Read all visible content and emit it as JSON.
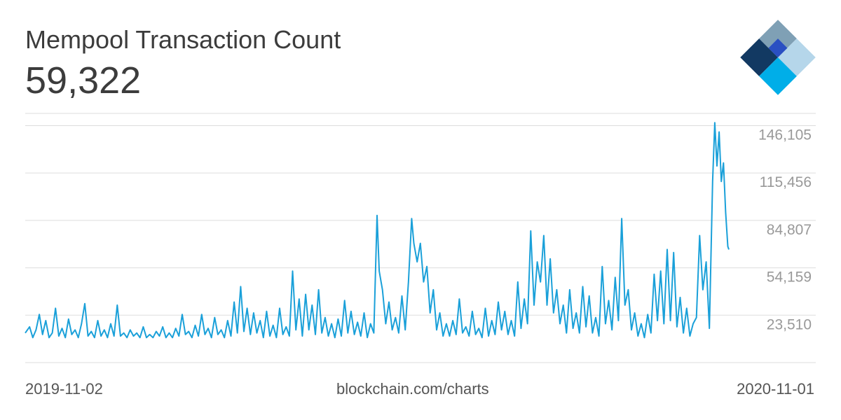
{
  "header": {
    "title": "Mempool Transaction Count",
    "value": "59,322"
  },
  "footer": {
    "start_date": "2019-11-02",
    "source": "blockchain.com/charts",
    "end_date": "2020-11-01"
  },
  "logo": {
    "icon": "blockchain-logo-icon",
    "colors": [
      "#7fa0b5",
      "#123962",
      "#2a4fc2",
      "#b5d6ea",
      "#00aee8"
    ]
  },
  "colors": {
    "line": "#1aa0d9",
    "grid": "#dddddd",
    "tick_text": "#999999"
  },
  "chart_data": {
    "type": "line",
    "title": "Mempool Transaction Count",
    "xlabel": "",
    "ylabel": "",
    "x_range": [
      "2019-11-02",
      "2020-11-01"
    ],
    "yticks": [
      23510,
      54159,
      84807,
      115456,
      146105
    ],
    "ytick_labels": [
      "23,510",
      "54,159",
      "84,807",
      "115,456",
      "146,105"
    ],
    "ylim": [
      -7139,
      154000
    ],
    "grid": true,
    "series": [
      {
        "values": [
          [
            0,
            12000
          ],
          [
            4,
            16000
          ],
          [
            7,
            9000
          ],
          [
            10,
            14000
          ],
          [
            13,
            24000
          ],
          [
            16,
            11000
          ],
          [
            19,
            20000
          ],
          [
            22,
            9000
          ],
          [
            25,
            12000
          ],
          [
            28,
            28000
          ],
          [
            31,
            10000
          ],
          [
            34,
            15000
          ],
          [
            37,
            9000
          ],
          [
            40,
            21000
          ],
          [
            43,
            11000
          ],
          [
            46,
            14000
          ],
          [
            49,
            9000
          ],
          [
            52,
            18000
          ],
          [
            55,
            31000
          ],
          [
            58,
            10000
          ],
          [
            61,
            13000
          ],
          [
            64,
            9000
          ],
          [
            67,
            20000
          ],
          [
            70,
            10000
          ],
          [
            73,
            14000
          ],
          [
            76,
            9000
          ],
          [
            79,
            18000
          ],
          [
            82,
            10000
          ],
          [
            85,
            30000
          ],
          [
            88,
            10000
          ],
          [
            91,
            12000
          ],
          [
            94,
            9000
          ],
          [
            97,
            14000
          ],
          [
            100,
            10000
          ],
          [
            103,
            12000
          ],
          [
            106,
            9000
          ],
          [
            109,
            16000
          ],
          [
            112,
            9000
          ],
          [
            115,
            11000
          ],
          [
            118,
            9000
          ],
          [
            121,
            13000
          ],
          [
            124,
            10000
          ],
          [
            127,
            16000
          ],
          [
            130,
            9000
          ],
          [
            133,
            12000
          ],
          [
            136,
            9000
          ],
          [
            139,
            15000
          ],
          [
            142,
            10000
          ],
          [
            145,
            24000
          ],
          [
            148,
            11000
          ],
          [
            151,
            13000
          ],
          [
            154,
            9000
          ],
          [
            157,
            17000
          ],
          [
            160,
            10000
          ],
          [
            163,
            24000
          ],
          [
            166,
            11000
          ],
          [
            169,
            15000
          ],
          [
            172,
            9000
          ],
          [
            175,
            22000
          ],
          [
            178,
            11000
          ],
          [
            181,
            14000
          ],
          [
            184,
            9000
          ],
          [
            187,
            20000
          ],
          [
            190,
            10000
          ],
          [
            193,
            32000
          ],
          [
            196,
            12000
          ],
          [
            199,
            42000
          ],
          [
            202,
            13000
          ],
          [
            205,
            28000
          ],
          [
            208,
            11000
          ],
          [
            211,
            25000
          ],
          [
            214,
            12000
          ],
          [
            217,
            20000
          ],
          [
            220,
            9000
          ],
          [
            223,
            26000
          ],
          [
            226,
            10000
          ],
          [
            229,
            17000
          ],
          [
            232,
            9000
          ],
          [
            235,
            28000
          ],
          [
            238,
            11000
          ],
          [
            241,
            16000
          ],
          [
            244,
            10000
          ],
          [
            247,
            52000
          ],
          [
            250,
            14000
          ],
          [
            253,
            34000
          ],
          [
            256,
            10000
          ],
          [
            259,
            37000
          ],
          [
            262,
            14000
          ],
          [
            265,
            30000
          ],
          [
            268,
            11000
          ],
          [
            271,
            40000
          ],
          [
            274,
            12000
          ],
          [
            277,
            22000
          ],
          [
            280,
            10000
          ],
          [
            283,
            18000
          ],
          [
            286,
            9000
          ],
          [
            289,
            21000
          ],
          [
            292,
            10000
          ],
          [
            295,
            33000
          ],
          [
            298,
            12000
          ],
          [
            301,
            26000
          ],
          [
            304,
            11000
          ],
          [
            307,
            19000
          ],
          [
            310,
            10000
          ],
          [
            313,
            25000
          ],
          [
            316,
            9000
          ],
          [
            319,
            18000
          ],
          [
            322,
            12000
          ],
          [
            325,
            88000
          ],
          [
            327,
            52000
          ],
          [
            330,
            40000
          ],
          [
            333,
            18000
          ],
          [
            336,
            32000
          ],
          [
            339,
            14000
          ],
          [
            342,
            22000
          ],
          [
            345,
            12000
          ],
          [
            348,
            36000
          ],
          [
            351,
            14000
          ],
          [
            354,
            45000
          ],
          [
            357,
            86000
          ],
          [
            359,
            70000
          ],
          [
            362,
            58000
          ],
          [
            365,
            70000
          ],
          [
            368,
            45000
          ],
          [
            371,
            55000
          ],
          [
            374,
            25000
          ],
          [
            377,
            40000
          ],
          [
            380,
            14000
          ],
          [
            383,
            25000
          ],
          [
            386,
            10000
          ],
          [
            389,
            18000
          ],
          [
            392,
            10000
          ],
          [
            395,
            20000
          ],
          [
            398,
            11000
          ],
          [
            401,
            34000
          ],
          [
            404,
            12000
          ],
          [
            407,
            16000
          ],
          [
            410,
            10000
          ],
          [
            413,
            26000
          ],
          [
            416,
            11000
          ],
          [
            419,
            15000
          ],
          [
            422,
            9000
          ],
          [
            425,
            28000
          ],
          [
            428,
            10000
          ],
          [
            431,
            20000
          ],
          [
            434,
            11000
          ],
          [
            437,
            32000
          ],
          [
            440,
            14000
          ],
          [
            443,
            26000
          ],
          [
            446,
            11000
          ],
          [
            449,
            20000
          ],
          [
            452,
            10000
          ],
          [
            455,
            45000
          ],
          [
            458,
            15000
          ],
          [
            461,
            34000
          ],
          [
            464,
            18000
          ],
          [
            467,
            78000
          ],
          [
            470,
            30000
          ],
          [
            473,
            58000
          ],
          [
            476,
            45000
          ],
          [
            479,
            75000
          ],
          [
            482,
            30000
          ],
          [
            485,
            60000
          ],
          [
            488,
            25000
          ],
          [
            491,
            40000
          ],
          [
            494,
            18000
          ],
          [
            497,
            30000
          ],
          [
            500,
            12000
          ],
          [
            503,
            40000
          ],
          [
            506,
            15000
          ],
          [
            509,
            25000
          ],
          [
            512,
            12000
          ],
          [
            515,
            42000
          ],
          [
            518,
            16000
          ],
          [
            521,
            36000
          ],
          [
            524,
            12000
          ],
          [
            527,
            22000
          ],
          [
            530,
            10000
          ],
          [
            533,
            55000
          ],
          [
            536,
            18000
          ],
          [
            539,
            33000
          ],
          [
            542,
            14000
          ],
          [
            545,
            48000
          ],
          [
            548,
            20000
          ],
          [
            551,
            86000
          ],
          [
            554,
            30000
          ],
          [
            557,
            40000
          ],
          [
            560,
            14000
          ],
          [
            563,
            25000
          ],
          [
            566,
            10000
          ],
          [
            569,
            18000
          ],
          [
            572,
            9000
          ],
          [
            575,
            24000
          ],
          [
            578,
            12000
          ],
          [
            581,
            50000
          ],
          [
            584,
            20000
          ],
          [
            587,
            52000
          ],
          [
            590,
            18000
          ],
          [
            593,
            66000
          ],
          [
            596,
            20000
          ],
          [
            599,
            64000
          ],
          [
            602,
            16000
          ],
          [
            605,
            35000
          ],
          [
            608,
            12000
          ],
          [
            611,
            28000
          ],
          [
            614,
            10000
          ],
          [
            617,
            18000
          ],
          [
            620,
            22000
          ],
          [
            623,
            75000
          ],
          [
            626,
            40000
          ],
          [
            629,
            58000
          ],
          [
            632,
            15000
          ],
          [
            635,
            110000
          ],
          [
            637,
            148000
          ],
          [
            639,
            120000
          ],
          [
            641,
            142000
          ],
          [
            643,
            110000
          ],
          [
            645,
            122000
          ],
          [
            647,
            90000
          ],
          [
            649,
            68000
          ],
          [
            650,
            66000
          ]
        ]
      }
    ],
    "x_max": 650
  }
}
